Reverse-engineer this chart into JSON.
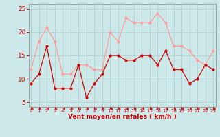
{
  "x": [
    0,
    1,
    2,
    3,
    4,
    5,
    6,
    7,
    8,
    9,
    10,
    11,
    12,
    13,
    14,
    15,
    16,
    17,
    18,
    19,
    20,
    21,
    22,
    23
  ],
  "wind_avg": [
    9,
    11,
    17,
    8,
    8,
    8,
    13,
    6,
    9,
    11,
    15,
    15,
    14,
    14,
    15,
    15,
    13,
    16,
    12,
    12,
    9,
    10,
    13,
    12
  ],
  "wind_gust": [
    12,
    18,
    21,
    18,
    11,
    11,
    13,
    13,
    12,
    12,
    20,
    18,
    23,
    22,
    22,
    22,
    24,
    22,
    17,
    17,
    16,
    14,
    13,
    16
  ],
  "avg_color": "#cc0000",
  "gust_color": "#ff9999",
  "bg_color": "#cce8e8",
  "grid_color": "#aacccc",
  "xlabel": "Vent moyen/en rafales ( km/h )",
  "xlabel_color": "#cc0000",
  "tick_color": "#cc0000",
  "ylim": [
    4,
    26
  ],
  "yticks": [
    5,
    10,
    15,
    20,
    25
  ],
  "arrow_color": "#cc0000",
  "spine_color": "#888888"
}
